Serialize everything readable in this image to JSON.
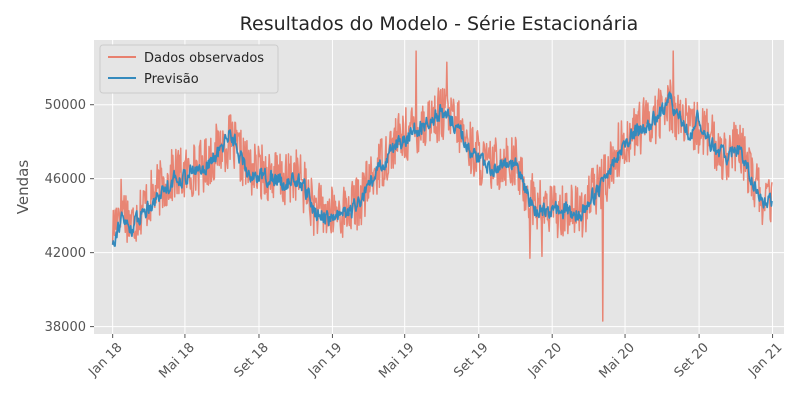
{
  "chart_data": {
    "type": "line",
    "title": "Resultados do Modelo - Série Estacionária",
    "ylabel": "Vendas",
    "xlabel": "",
    "x_range": [
      "2017-12-01",
      "2021-01-20"
    ],
    "y_range": [
      37600,
      53500
    ],
    "y_ticks": [
      38000,
      42000,
      46000,
      50000
    ],
    "x_ticks": [
      {
        "date": "2018-01-01",
        "label": "Jan 18"
      },
      {
        "date": "2018-05-01",
        "label": "Mai 18"
      },
      {
        "date": "2018-09-01",
        "label": "Set 18"
      },
      {
        "date": "2019-01-01",
        "label": "Jan 19"
      },
      {
        "date": "2019-05-01",
        "label": "Mai 19"
      },
      {
        "date": "2019-09-01",
        "label": "Set 19"
      },
      {
        "date": "2020-01-01",
        "label": "Jan 20"
      },
      {
        "date": "2020-05-01",
        "label": "Mai 20"
      },
      {
        "date": "2020-09-01",
        "label": "Set 20"
      },
      {
        "date": "2021-01-01",
        "label": "Jan 21"
      }
    ],
    "grid": true,
    "legend_position": "top-left",
    "series": [
      {
        "name": "Dados observados",
        "color": "#e8806e",
        "points": [
          [
            "2018-01-01",
            43200
          ],
          [
            "2018-01-15",
            44800
          ],
          [
            "2018-02-01",
            43500
          ],
          [
            "2018-02-15",
            44300
          ],
          [
            "2018-03-01",
            44800
          ],
          [
            "2018-03-15",
            45300
          ],
          [
            "2018-04-01",
            45800
          ],
          [
            "2018-04-15",
            46300
          ],
          [
            "2018-05-01",
            46200
          ],
          [
            "2018-05-15",
            46500
          ],
          [
            "2018-06-01",
            46700
          ],
          [
            "2018-06-15",
            47200
          ],
          [
            "2018-07-01",
            47800
          ],
          [
            "2018-07-15",
            48000
          ],
          [
            "2018-08-01",
            47200
          ],
          [
            "2018-08-15",
            46500
          ],
          [
            "2018-09-01",
            46400
          ],
          [
            "2018-09-15",
            46300
          ],
          [
            "2018-10-01",
            46100
          ],
          [
            "2018-10-15",
            45800
          ],
          [
            "2018-11-01",
            46300
          ],
          [
            "2018-11-15",
            45600
          ],
          [
            "2018-12-01",
            44400
          ],
          [
            "2018-12-15",
            44200
          ],
          [
            "2019-01-01",
            44100
          ],
          [
            "2019-01-15",
            44200
          ],
          [
            "2019-02-01",
            44400
          ],
          [
            "2019-02-15",
            44800
          ],
          [
            "2019-03-01",
            45600
          ],
          [
            "2019-03-15",
            46500
          ],
          [
            "2019-04-01",
            47300
          ],
          [
            "2019-04-15",
            48000
          ],
          [
            "2019-05-01",
            48300
          ],
          [
            "2019-05-15",
            48600
          ],
          [
            "2019-06-01",
            49000
          ],
          [
            "2019-06-15",
            49300
          ],
          [
            "2019-07-01",
            49500
          ],
          [
            "2019-07-15",
            49200
          ],
          [
            "2019-08-01",
            48700
          ],
          [
            "2019-08-15",
            47800
          ],
          [
            "2019-09-01",
            47200
          ],
          [
            "2019-09-15",
            46600
          ],
          [
            "2019-10-01",
            46800
          ],
          [
            "2019-10-15",
            47100
          ],
          [
            "2019-11-01",
            46800
          ],
          [
            "2019-11-15",
            45600
          ],
          [
            "2019-12-01",
            44800
          ],
          [
            "2019-12-15",
            44400
          ],
          [
            "2020-01-01",
            44300
          ],
          [
            "2020-01-15",
            44300
          ],
          [
            "2020-02-01",
            44400
          ],
          [
            "2020-02-15",
            44100
          ],
          [
            "2020-03-01",
            44800
          ],
          [
            "2020-03-15",
            45400
          ],
          [
            "2020-04-01",
            46200
          ],
          [
            "2020-04-15",
            47300
          ],
          [
            "2020-05-01",
            48000
          ],
          [
            "2020-05-15",
            48500
          ],
          [
            "2020-06-01",
            48900
          ],
          [
            "2020-06-15",
            49200
          ],
          [
            "2020-07-01",
            49700
          ],
          [
            "2020-07-15",
            50000
          ],
          [
            "2020-08-01",
            49300
          ],
          [
            "2020-08-15",
            48600
          ],
          [
            "2020-09-01",
            48800
          ],
          [
            "2020-09-15",
            48400
          ],
          [
            "2020-10-01",
            47500
          ],
          [
            "2020-10-15",
            47400
          ],
          [
            "2020-11-01",
            47600
          ],
          [
            "2020-11-15",
            47200
          ],
          [
            "2020-12-01",
            45800
          ],
          [
            "2020-12-15",
            44900
          ],
          [
            "2020-12-31",
            44600
          ]
        ],
        "noise_amplitude": 1500,
        "extreme_points": [
          [
            "2020-03-25",
            38300
          ],
          [
            "2019-11-25",
            41700
          ],
          [
            "2019-05-20",
            52900
          ],
          [
            "2020-07-20",
            52900
          ],
          [
            "2019-07-10",
            52300
          ],
          [
            "2019-12-15",
            41800
          ]
        ]
      },
      {
        "name": "Previsão",
        "color": "#348abd",
        "points": [
          [
            "2018-01-01",
            42600
          ],
          [
            "2018-01-15",
            43800
          ],
          [
            "2018-02-01",
            43300
          ],
          [
            "2018-02-15",
            44000
          ],
          [
            "2018-03-01",
            44500
          ],
          [
            "2018-03-15",
            45000
          ],
          [
            "2018-04-01",
            45600
          ],
          [
            "2018-04-15",
            46000
          ],
          [
            "2018-05-01",
            46100
          ],
          [
            "2018-05-15",
            46400
          ],
          [
            "2018-06-01",
            46600
          ],
          [
            "2018-06-15",
            47000
          ],
          [
            "2018-07-01",
            47600
          ],
          [
            "2018-07-15",
            48600
          ],
          [
            "2018-08-01",
            47200
          ],
          [
            "2018-08-15",
            46200
          ],
          [
            "2018-09-01",
            46200
          ],
          [
            "2018-09-15",
            46100
          ],
          [
            "2018-10-01",
            45900
          ],
          [
            "2018-10-15",
            45700
          ],
          [
            "2018-11-01",
            46000
          ],
          [
            "2018-11-15",
            45500
          ],
          [
            "2018-12-01",
            44300
          ],
          [
            "2018-12-15",
            44000
          ],
          [
            "2019-01-01",
            43800
          ],
          [
            "2019-01-15",
            44000
          ],
          [
            "2019-02-01",
            44200
          ],
          [
            "2019-02-15",
            44700
          ],
          [
            "2019-03-01",
            45400
          ],
          [
            "2019-03-15",
            46300
          ],
          [
            "2019-04-01",
            47100
          ],
          [
            "2019-04-15",
            47800
          ],
          [
            "2019-05-01",
            48100
          ],
          [
            "2019-05-15",
            48500
          ],
          [
            "2019-06-01",
            48900
          ],
          [
            "2019-06-15",
            49300
          ],
          [
            "2019-07-01",
            49600
          ],
          [
            "2019-07-15",
            49200
          ],
          [
            "2019-08-01",
            48600
          ],
          [
            "2019-08-15",
            47700
          ],
          [
            "2019-09-01",
            47000
          ],
          [
            "2019-09-15",
            46500
          ],
          [
            "2019-10-01",
            46700
          ],
          [
            "2019-10-15",
            47000
          ],
          [
            "2019-11-01",
            46700
          ],
          [
            "2019-11-15",
            45500
          ],
          [
            "2019-12-01",
            44500
          ],
          [
            "2019-12-15",
            44200
          ],
          [
            "2020-01-01",
            44200
          ],
          [
            "2020-01-15",
            44300
          ],
          [
            "2020-02-01",
            44300
          ],
          [
            "2020-02-15",
            44000
          ],
          [
            "2020-03-01",
            44700
          ],
          [
            "2020-03-15",
            45300
          ],
          [
            "2020-04-01",
            46000
          ],
          [
            "2020-04-15",
            47100
          ],
          [
            "2020-05-01",
            47800
          ],
          [
            "2020-05-15",
            48400
          ],
          [
            "2020-06-01",
            48800
          ],
          [
            "2020-06-15",
            49100
          ],
          [
            "2020-07-01",
            49600
          ],
          [
            "2020-07-15",
            50300
          ],
          [
            "2020-08-01",
            49200
          ],
          [
            "2020-08-15",
            48400
          ],
          [
            "2020-09-01",
            49300
          ],
          [
            "2020-09-15",
            48200
          ],
          [
            "2020-10-01",
            47400
          ],
          [
            "2020-10-15",
            47300
          ],
          [
            "2020-11-01",
            47500
          ],
          [
            "2020-11-15",
            47100
          ],
          [
            "2020-12-01",
            45700
          ],
          [
            "2020-12-15",
            44800
          ],
          [
            "2020-12-31",
            44700
          ]
        ],
        "noise_amplitude": 700
      }
    ]
  }
}
